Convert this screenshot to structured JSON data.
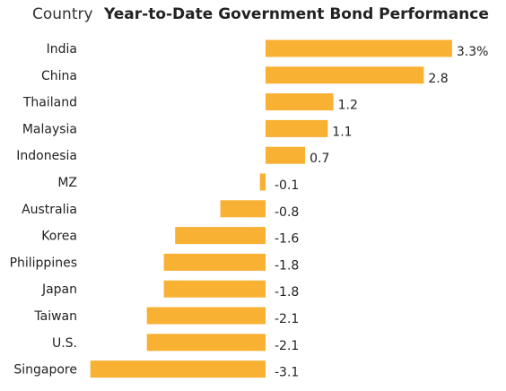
{
  "header": {
    "category_label": "Country",
    "title": "Year-to-Date Government Bond Performance"
  },
  "colors": {
    "bar": "#F8B133"
  },
  "chart_data": {
    "type": "bar",
    "orientation": "horizontal",
    "title": "Year-to-Date Government Bond Performance",
    "category_axis_label": "Country",
    "categories": [
      "India",
      "China",
      "Thailand",
      "Malaysia",
      "Indonesia",
      "MZ",
      "Australia",
      "Korea",
      "Philippines",
      "Japan",
      "Taiwan",
      "U.S.",
      "Singapore"
    ],
    "values": [
      3.3,
      2.8,
      1.2,
      1.1,
      0.7,
      -0.1,
      -0.8,
      -1.6,
      -1.8,
      -1.8,
      -2.1,
      -2.1,
      -3.1
    ],
    "data_labels": [
      "3.3%",
      "2.8",
      "1.2",
      "1.1",
      "0.7",
      "-0.1",
      "-0.8",
      "-1.6",
      "-1.8",
      "-1.8",
      "-2.1",
      "-2.1",
      "-3.1"
    ],
    "unit": "%",
    "grid": false,
    "legend": "none"
  }
}
